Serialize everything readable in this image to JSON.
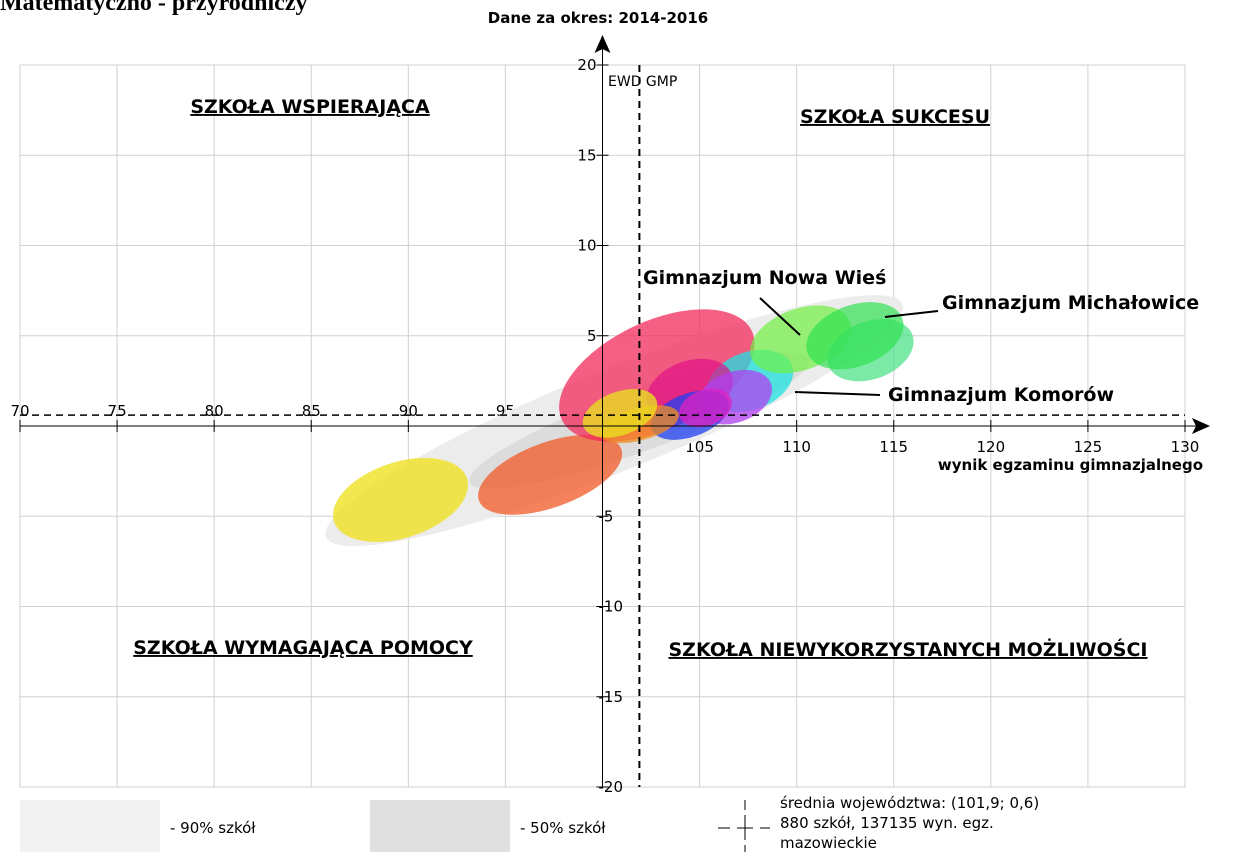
{
  "chart_data": {
    "type": "ellipse",
    "title": "Matematyczno - przyrodniczy",
    "subtitle": "Dane za okres: 2014-2016",
    "xlabel": "wynik egzaminu gimnazjalnego",
    "ylabel": "EWD GMP",
    "xlim": [
      70,
      130
    ],
    "ylim": [
      -20,
      20
    ],
    "xticks": [
      70,
      75,
      80,
      85,
      90,
      95,
      105,
      110,
      115,
      120,
      125,
      130
    ],
    "yticks": [
      -20,
      -15,
      -10,
      -5,
      5,
      10,
      15,
      20
    ],
    "grid": true,
    "mean": [
      101.9,
      0.6
    ],
    "quadrants": [
      "SZKOŁA WSPIERAJĄCA",
      "SZKOŁA SUKCESU",
      "SZKOŁA WYMAGAJĄCA POMOCY",
      "SZKOŁA NIEWYKORZYSTANYCH MOŻLIWOŚCI"
    ],
    "annotations": [
      "Gimnazjum Nowa Wieś",
      "Gimnazjum Michałowice",
      "Gimnazjum Komorów"
    ],
    "legend": [
      "- 90% szkół",
      "- 50% szkół",
      "średnia województwa: (101,9; 0,6)",
      "880 szkół, 137135 wyn. egz.",
      "mazowieckie"
    ],
    "ellipses": [
      {
        "color": "#ececec",
        "x": 100.6,
        "y": 0.3,
        "rx": 16,
        "ry": 2.8,
        "angle": -22
      },
      {
        "color": "#dcdcdc",
        "x": 101.9,
        "y": 0.3,
        "rx": 9.3,
        "ry": 1.7,
        "angle": -20
      },
      {
        "color": "#f0e020c8",
        "x": 89.6,
        "y": -4.1,
        "rx": 3.6,
        "ry": 2.1,
        "angle": -18
      },
      {
        "color": "#f05a28c0",
        "x": 97.3,
        "y": -2.7,
        "rx": 3.9,
        "ry": 1.8,
        "angle": -20
      },
      {
        "color": "#f02a5ac0",
        "x": 102.8,
        "y": 2.8,
        "rx": 5.4,
        "ry": 3.0,
        "angle": -25
      },
      {
        "color": "#20e0e0c0",
        "x": 107.6,
        "y": 2.5,
        "rx": 2.3,
        "ry": 1.6,
        "angle": -20
      },
      {
        "color": "#e0108ab0",
        "x": 104.5,
        "y": 2.0,
        "rx": 2.3,
        "ry": 1.6,
        "angle": -20
      },
      {
        "color": "#b040f0c0",
        "x": 106.8,
        "y": 1.6,
        "rx": 2.0,
        "ry": 1.4,
        "angle": -20
      },
      {
        "color": "#2040f0c0",
        "x": 104.5,
        "y": 0.6,
        "rx": 2.1,
        "ry": 1.2,
        "angle": -20
      },
      {
        "color": "#e020c0c0",
        "x": 105.3,
        "y": 1.0,
        "rx": 1.4,
        "ry": 1.0,
        "angle": -20
      },
      {
        "color": "#f09020c0",
        "x": 101.9,
        "y": 0.1,
        "rx": 2.1,
        "ry": 0.9,
        "angle": -15
      },
      {
        "color": "#e8e020c8",
        "x": 100.9,
        "y": 0.7,
        "rx": 2.0,
        "ry": 1.2,
        "angle": -20
      },
      {
        "color": "#70f040b0",
        "x": 110.2,
        "y": 4.8,
        "rx": 2.7,
        "ry": 1.7,
        "angle": -20
      },
      {
        "color": "#40e080b0",
        "x": 113.8,
        "y": 4.2,
        "rx": 2.3,
        "ry": 1.6,
        "angle": -20
      },
      {
        "color": "#30e050b0",
        "x": 113.0,
        "y": 5.0,
        "rx": 2.6,
        "ry": 1.7,
        "angle": -20
      }
    ]
  }
}
